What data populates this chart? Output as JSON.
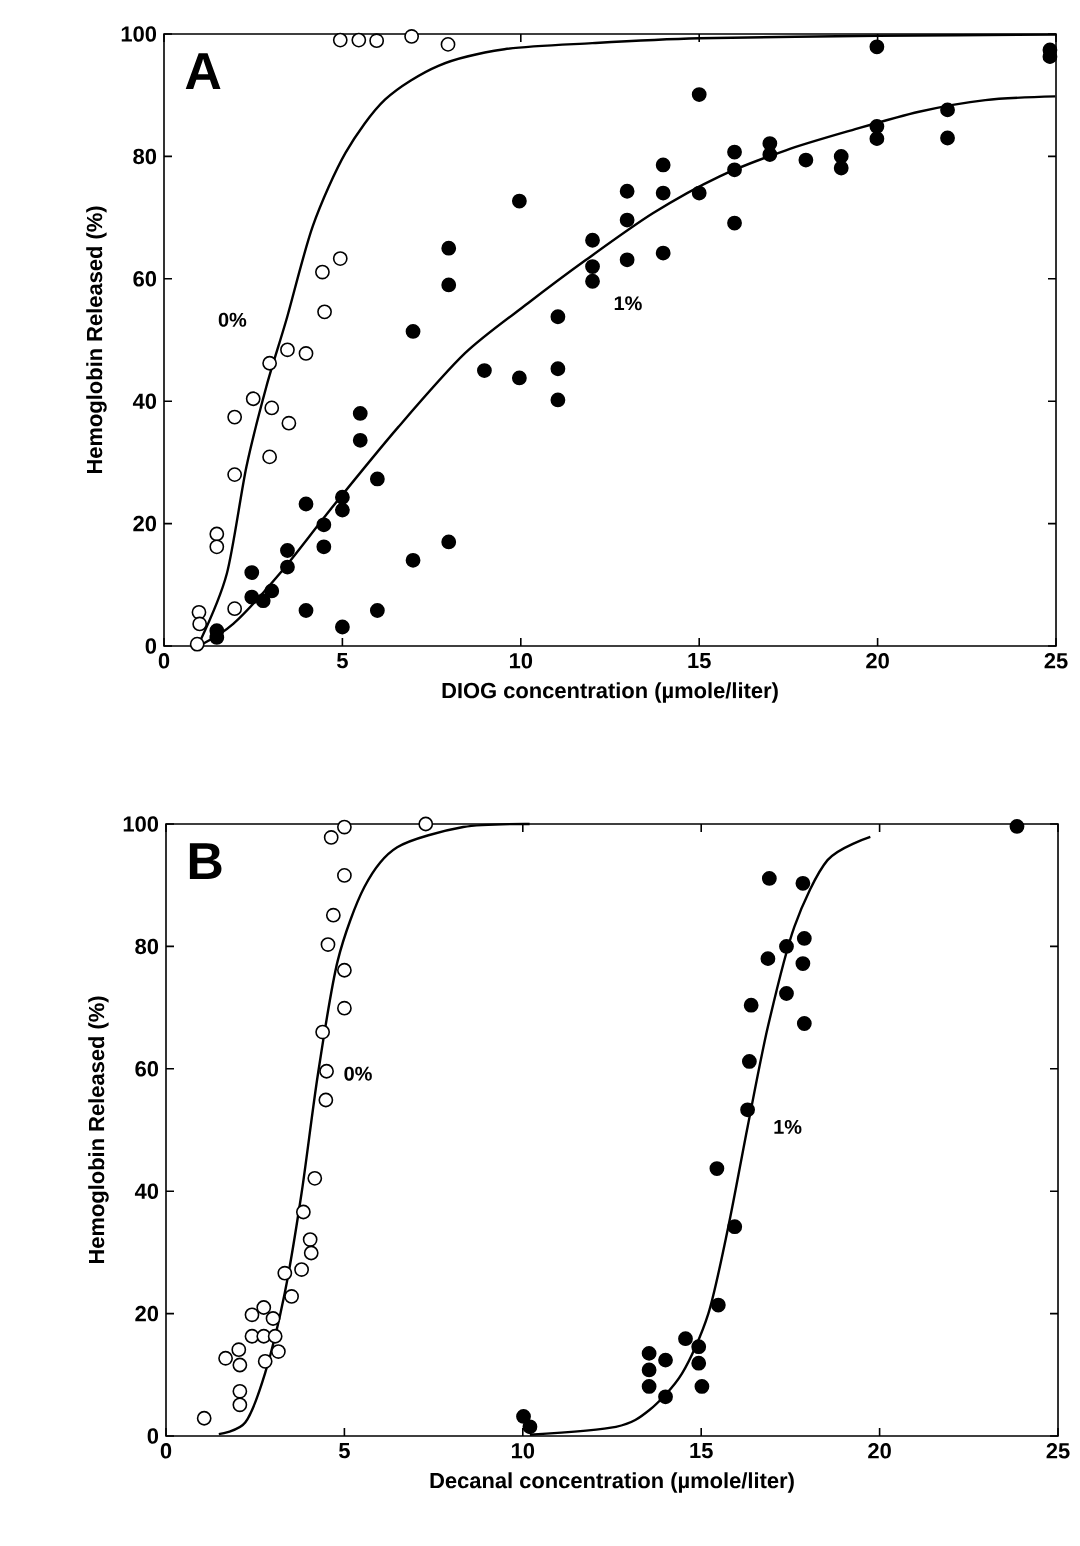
{
  "chart_data": [
    {
      "type": "scatter",
      "title": "A",
      "xlabel": "DIOG concentration (µmole/liter)",
      "ylabel": "Hemoglobin Released (%)",
      "xlim": [
        0,
        25
      ],
      "ylim": [
        0,
        100
      ],
      "xticks": [
        0,
        5,
        10,
        15,
        20,
        25
      ],
      "yticks": [
        0,
        20,
        40,
        60,
        80,
        100
      ],
      "series": [
        {
          "marker": "circle",
          "color": "#ffffff",
          "x": [
            0.98,
            1.0,
            0.93,
            1.48,
            1.48,
            1.98,
            1.98,
            1.98,
            2.5,
            2.96,
            3.02,
            2.96,
            3.46,
            3.5,
            3.98,
            4.44,
            4.5,
            4.94,
            4.94,
            5.46,
            5.96,
            6.94,
            7.96
          ],
          "values": [
            5.5,
            3.6,
            0.3,
            18.3,
            16.2,
            6.1,
            28,
            37.4,
            40.4,
            46.2,
            38.9,
            30.9,
            48.4,
            36.4,
            47.8,
            61.1,
            54.6,
            63.3,
            99,
            99,
            98.9,
            99.6,
            98.3
          ]
        },
        {
          "marker": "circle",
          "color": "#000000",
          "x": [
            1.48,
            1.48,
            2.46,
            2.46,
            2.78,
            3.02,
            3.46,
            3.46,
            3.98,
            3.98,
            4.48,
            4.48,
            5,
            5,
            5,
            5.5,
            5.5,
            5.98,
            5.98,
            6.98,
            6.98,
            7.98,
            7.98,
            7.98,
            8.98,
            9.96,
            9.96,
            11.04,
            11.04,
            11.04,
            12.01,
            12.01,
            12.01,
            12.98,
            12.98,
            12.98,
            13.99,
            13.99,
            13.99,
            15,
            15,
            15.99,
            15.99,
            15.99,
            16.98,
            16.98,
            17.99,
            18.98,
            18.98,
            19.98,
            19.98,
            19.98,
            21.96,
            21.96,
            24.83,
            24.83
          ],
          "values": [
            1.4,
            2.5,
            12,
            8,
            7.4,
            9,
            15.6,
            12.9,
            23.2,
            5.8,
            19.8,
            16.2,
            24.3,
            22.2,
            3.1,
            38,
            33.6,
            27.3,
            5.8,
            51.4,
            14,
            65,
            59,
            17,
            45,
            43.8,
            72.7,
            53.8,
            45.3,
            40.2,
            66.3,
            62,
            59.6,
            74.3,
            69.6,
            63.1,
            78.6,
            74,
            64.2,
            90.1,
            74,
            80.7,
            77.8,
            69.1,
            82.1,
            80.3,
            79.4,
            80,
            78.1,
            84.9,
            82.9,
            97.9,
            87.6,
            83,
            97.4,
            96.3
          ]
        },
        {
          "type": "line",
          "name": "0%",
          "marker": "none",
          "color": "#000000",
          "x": [
            1.02,
            1.76,
            2.31,
            2.87,
            3.43,
            4.17,
            5.09,
            6.2,
            7.69,
            9.54,
            12,
            15,
            20,
            25
          ],
          "values": [
            0.9,
            11.8,
            29.3,
            42.4,
            53.3,
            68.6,
            80.6,
            89.3,
            94.8,
            97.5,
            98.5,
            99.3,
            99.7,
            99.9
          ]
        },
        {
          "type": "line",
          "name": "1%",
          "marker": "none",
          "color": "#000000",
          "x": [
            0.98,
            1.94,
            3.24,
            4.72,
            6.57,
            8.43,
            10.2,
            11.83,
            13.7,
            15.56,
            17.43,
            19.29,
            21.16,
            23.02,
            24.98
          ],
          "values": [
            0,
            3.6,
            11.8,
            22.7,
            35.8,
            47.8,
            56,
            63.1,
            70.7,
            76.7,
            81,
            84.3,
            87.3,
            89.2,
            89.8
          ]
        }
      ]
    },
    {
      "type": "scatter",
      "title": "B",
      "xlabel": "Decanal concentration (µmole/liter)",
      "ylabel": "Hemoglobin Released (%)",
      "xlim": [
        0,
        25
      ],
      "ylim": [
        0,
        100
      ],
      "xticks": [
        0,
        5,
        10,
        15,
        20,
        25
      ],
      "yticks": [
        0,
        20,
        40,
        60,
        80,
        100
      ],
      "series": [
        {
          "marker": "circle",
          "color": "#ffffff",
          "x": [
            1.07,
            1.67,
            2.04,
            2.07,
            2.07,
            2.07,
            2.41,
            2.41,
            2.74,
            2.74,
            2.78,
            3,
            3.06,
            3.15,
            3.33,
            3.52,
            3.8,
            3.85,
            4.04,
            4.07,
            4.17,
            4.39,
            4.5,
            4.48,
            4.54,
            4.69,
            4.63,
            5,
            5,
            5,
            5,
            7.28
          ],
          "values": [
            2.9,
            12.7,
            14.1,
            11.6,
            7.3,
            5.1,
            19.8,
            16.3,
            21,
            16.3,
            12.2,
            19.2,
            16.3,
            13.8,
            26.6,
            22.8,
            27.2,
            36.6,
            32.1,
            29.9,
            42.1,
            66,
            59.6,
            54.9,
            80.3,
            85.1,
            97.8,
            99.5,
            91.6,
            76.1,
            69.9,
            100
          ]
        },
        {
          "marker": "circle",
          "color": "#000000",
          "x": [
            10.02,
            10.2,
            13.54,
            13.54,
            13.54,
            14,
            14,
            14.56,
            14.93,
            14.93,
            15.02,
            15.48,
            15.94,
            15.44,
            16.3,
            16.35,
            16.4,
            16.91,
            16.87,
            17.39,
            17.39,
            17.85,
            17.89,
            17.85,
            17.89,
            23.85
          ],
          "values": [
            3.2,
            1.5,
            13.5,
            10.8,
            8.1,
            12.4,
            6.4,
            15.9,
            14.6,
            11.9,
            8.1,
            21.4,
            34.2,
            43.7,
            53.3,
            61.2,
            70.4,
            91.1,
            78,
            80,
            72.3,
            90.3,
            81.3,
            77.2,
            67.4,
            99.6
          ]
        },
        {
          "type": "line",
          "name": "0%",
          "marker": "none",
          "color": "#000000",
          "x": [
            1.48,
            2.22,
            2.78,
            3.33,
            3.8,
            4.26,
            4.81,
            5.56,
            6.48,
            8.33,
            10.19
          ],
          "values": [
            0.3,
            2.2,
            10.3,
            23.4,
            39.7,
            59.2,
            77.6,
            89.7,
            96.2,
            99.5,
            100
          ]
        },
        {
          "type": "line",
          "name": "1%",
          "marker": "none",
          "color": "#000000",
          "x": [
            10.2,
            12.61,
            13.54,
            14.46,
            15.2,
            15.76,
            16.3,
            16.87,
            17.61,
            18.54,
            19.74
          ],
          "values": [
            0.2,
            1.5,
            4.2,
            10.2,
            20,
            34.2,
            50.5,
            66.9,
            83.2,
            94.1,
            97.9
          ]
        }
      ]
    }
  ]
}
